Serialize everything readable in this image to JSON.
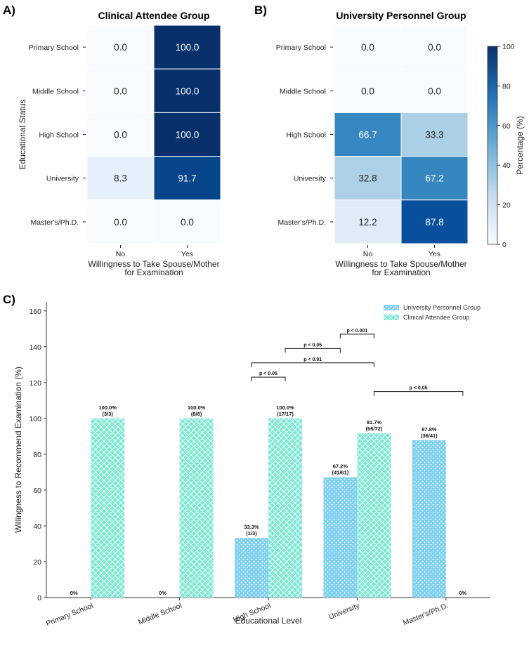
{
  "panels": {
    "a": "A)",
    "b": "B)",
    "c": "C)"
  },
  "chart_data": [
    {
      "type": "heatmap",
      "title": "Clinical Attendee Group",
      "xlabel": "Willingness to Take Spouse/Mother\nfor Examination",
      "ylabel": "Educational Status",
      "rows": [
        "Primary School",
        "Middle School",
        "High School",
        "University",
        "Master's/Ph.D."
      ],
      "columns": [
        "No",
        "Yes"
      ],
      "values": [
        [
          0.0,
          100.0
        ],
        [
          0.0,
          100.0
        ],
        [
          0.0,
          100.0
        ],
        [
          8.3,
          91.7
        ],
        [
          0.0,
          0.0
        ]
      ],
      "vmin": 0,
      "vmax": 100
    },
    {
      "type": "heatmap",
      "title": "University Personnel Group",
      "xlabel": "Willingness to Take Spouse/Mother\nfor Examination",
      "rows": [
        "Primary School",
        "Middle School",
        "High School",
        "University",
        "Master's/Ph.D."
      ],
      "columns": [
        "No",
        "Yes"
      ],
      "values": [
        [
          0.0,
          0.0
        ],
        [
          0.0,
          0.0
        ],
        [
          66.7,
          33.3
        ],
        [
          32.8,
          67.2
        ],
        [
          12.2,
          87.8
        ]
      ],
      "colorbar_label": "Percentage (%)",
      "colorbar_ticks": [
        0,
        20,
        40,
        60,
        80,
        100
      ],
      "vmin": 0,
      "vmax": 100
    },
    {
      "type": "bar",
      "xlabel": "Educational Level",
      "ylabel": "Willingness to Recommend Examination (%)",
      "ylim": [
        0,
        165
      ],
      "yticks": [
        0,
        20,
        40,
        60,
        80,
        100,
        120,
        140,
        160
      ],
      "categories": [
        "Primary School",
        "Middle School",
        "High School",
        "University",
        "Master's/Ph.D."
      ],
      "series": [
        {
          "name": "University Personnel Group",
          "color": "#7fd0f0",
          "values": [
            0,
            0,
            33.3,
            67.2,
            87.8
          ],
          "labels": [
            [
              "0%"
            ],
            [
              "0%"
            ],
            [
              "33.3%",
              "(1/3)"
            ],
            [
              "67.2%",
              "(41/61)"
            ],
            [
              "87.8%",
              "(36/41)"
            ]
          ]
        },
        {
          "name": "Clinical Attendee Group",
          "color": "#7be8d2",
          "values": [
            100,
            100,
            100,
            91.7,
            0
          ],
          "labels": [
            [
              "100.0%",
              "(3/3)"
            ],
            [
              "100.0%",
              "(8/8)"
            ],
            [
              "100.0%",
              "(17/17)"
            ],
            [
              "91.7%",
              "(66/72)"
            ],
            [
              "0%"
            ]
          ]
        }
      ],
      "significance": [
        {
          "label": "p < 0.001",
          "from": [
            3,
            0
          ],
          "to": [
            3,
            1
          ],
          "y": 147
        },
        {
          "label": "p < 0.05",
          "from": [
            2,
            1
          ],
          "to": [
            3,
            0
          ],
          "y": 139
        },
        {
          "label": "p < 0.01",
          "from": [
            2,
            0
          ],
          "to": [
            3,
            1
          ],
          "y": 131
        },
        {
          "label": "p < 0.05",
          "from": [
            2,
            0
          ],
          "to": [
            2,
            1
          ],
          "y": 123
        },
        {
          "label": "p < 0.05",
          "from": [
            3,
            1
          ],
          "to": [
            4,
            1
          ],
          "y": 115
        }
      ]
    }
  ]
}
